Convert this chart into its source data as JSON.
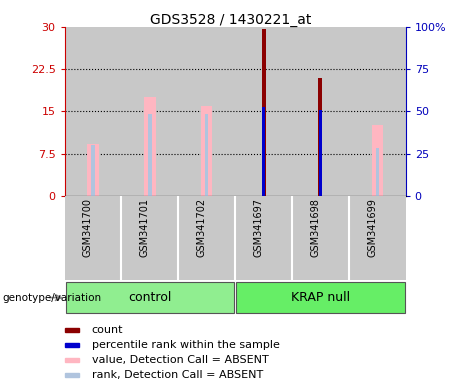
{
  "title": "GDS3528 / 1430221_at",
  "samples": [
    "GSM341700",
    "GSM341701",
    "GSM341702",
    "GSM341697",
    "GSM341698",
    "GSM341699"
  ],
  "ylim_left": [
    0,
    30
  ],
  "ylim_right": [
    0,
    100
  ],
  "yticks_left": [
    0,
    7.5,
    15,
    22.5,
    30
  ],
  "yticks_right": [
    0,
    25,
    50,
    75,
    100
  ],
  "ytick_labels_left": [
    "0",
    "7.5",
    "15",
    "22.5",
    "30"
  ],
  "ytick_labels_right": [
    "0",
    "25",
    "50",
    "75",
    "100%"
  ],
  "left_axis_color": "#CC0000",
  "right_axis_color": "#0000BB",
  "plot_bg_color": "#FFFFFF",
  "col_bg_color": "#C8C8C8",
  "value_absent_color": "#FFB6C1",
  "rank_absent_color": "#B0C4DE",
  "count_color": "#8B0000",
  "percentile_color": "#0000CD",
  "count_values": [
    null,
    null,
    null,
    29.7,
    21.0,
    null
  ],
  "percentile_values_left": [
    null,
    null,
    null,
    15.8,
    15.2,
    null
  ],
  "value_absent": [
    9.2,
    17.5,
    16.0,
    null,
    null,
    12.5
  ],
  "rank_absent": [
    9.0,
    14.5,
    14.5,
    null,
    null,
    8.5
  ],
  "grid_vals": [
    7.5,
    15.0,
    22.5
  ],
  "group_spans": [
    [
      0,
      2,
      "control",
      "#90EE90"
    ],
    [
      3,
      5,
      "KRAP null",
      "#66EE66"
    ]
  ],
  "group_label": "genotype/variation",
  "legend_items": [
    {
      "label": "count",
      "color": "#8B0000"
    },
    {
      "label": "percentile rank within the sample",
      "color": "#0000CD"
    },
    {
      "label": "value, Detection Call = ABSENT",
      "color": "#FFB6C1"
    },
    {
      "label": "rank, Detection Call = ABSENT",
      "color": "#B0C4DE"
    }
  ],
  "title_fontsize": 10,
  "axis_label_fontsize": 8,
  "tick_fontsize": 8,
  "sample_fontsize": 7,
  "group_fontsize": 9,
  "legend_fontsize": 8
}
